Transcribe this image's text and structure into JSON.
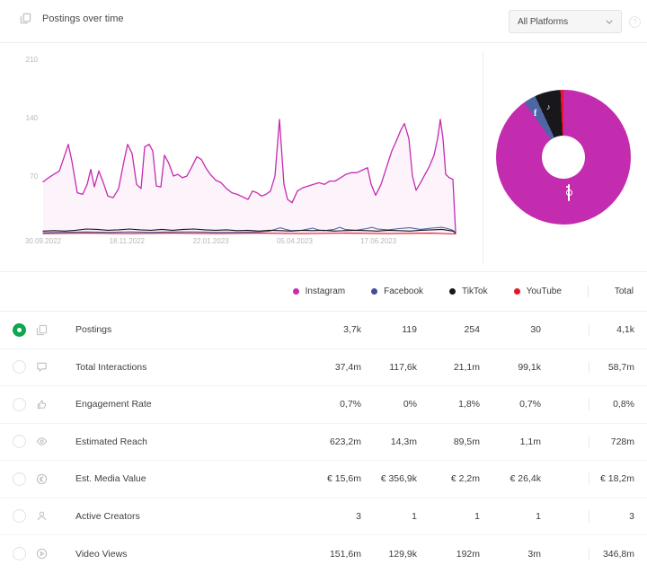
{
  "header": {
    "title": "Postings over time",
    "title_icon": "copy-icon",
    "platform_filter": "All Platforms",
    "help_icon": "help-icon"
  },
  "colors": {
    "instagram": "#c42cb0",
    "facebook": "#4e66a4",
    "facebook_dot": "#3f4e96",
    "tiktok": "#17171c",
    "youtube": "#e9132b",
    "selected_radio": "#0ca750",
    "instagram_fill": "rgba(196,44,176,0.055)",
    "axis_text": "#b8b8b8"
  },
  "chart_data": [
    {
      "type": "line",
      "title": "Postings over time",
      "grid": false,
      "y_ticks": [
        210,
        140,
        70
      ],
      "ylim": [
        0,
        235
      ],
      "x_ticks": [
        "30.09.2022",
        "18.11.2022",
        "22.01.2023",
        "05.04.2023",
        "17.06.2023"
      ],
      "series": [
        {
          "name": "Instagram",
          "color": "#c42cb0",
          "fill": true,
          "points": [
            [
              0,
              63
            ],
            [
              6,
              68
            ],
            [
              12,
              72
            ],
            [
              18,
              76
            ],
            [
              24,
              95
            ],
            [
              28,
              108
            ],
            [
              32,
              88
            ],
            [
              38,
              50
            ],
            [
              44,
              48
            ],
            [
              49,
              60
            ],
            [
              53,
              78
            ],
            [
              57,
              57
            ],
            [
              62,
              76
            ],
            [
              67,
              62
            ],
            [
              72,
              46
            ],
            [
              78,
              44
            ],
            [
              84,
              55
            ],
            [
              90,
              88
            ],
            [
              94,
              108
            ],
            [
              99,
              97
            ],
            [
              104,
              60
            ],
            [
              109,
              55
            ],
            [
              113,
              105
            ],
            [
              118,
              108
            ],
            [
              122,
              100
            ],
            [
              126,
              58
            ],
            [
              131,
              57
            ],
            [
              135,
              95
            ],
            [
              140,
              85
            ],
            [
              145,
              70
            ],
            [
              150,
              72
            ],
            [
              155,
              68
            ],
            [
              160,
              70
            ],
            [
              165,
              80
            ],
            [
              171,
              93
            ],
            [
              176,
              90
            ],
            [
              181,
              80
            ],
            [
              186,
              72
            ],
            [
              192,
              65
            ],
            [
              198,
              62
            ],
            [
              204,
              55
            ],
            [
              210,
              50
            ],
            [
              216,
              48
            ],
            [
              222,
              45
            ],
            [
              228,
              42
            ],
            [
              233,
              52
            ],
            [
              238,
              50
            ],
            [
              243,
              46
            ],
            [
              248,
              48
            ],
            [
              253,
              52
            ],
            [
              258,
              70
            ],
            [
              263,
              138
            ],
            [
              268,
              60
            ],
            [
              272,
              42
            ],
            [
              277,
              38
            ],
            [
              283,
              52
            ],
            [
              289,
              56
            ],
            [
              295,
              58
            ],
            [
              301,
              60
            ],
            [
              307,
              62
            ],
            [
              313,
              60
            ],
            [
              319,
              64
            ],
            [
              325,
              64
            ],
            [
              331,
              68
            ],
            [
              337,
              72
            ],
            [
              343,
              74
            ],
            [
              349,
              74
            ],
            [
              355,
              77
            ],
            [
              361,
              80
            ],
            [
              365,
              60
            ],
            [
              370,
              47
            ],
            [
              376,
              60
            ],
            [
              382,
              80
            ],
            [
              388,
              100
            ],
            [
              393,
              112
            ],
            [
              398,
              125
            ],
            [
              402,
              133
            ],
            [
              407,
              115
            ],
            [
              411,
              70
            ],
            [
              415,
              53
            ],
            [
              420,
              62
            ],
            [
              425,
              72
            ],
            [
              430,
              82
            ],
            [
              435,
              95
            ],
            [
              439,
              115
            ],
            [
              442,
              138
            ],
            [
              445,
              115
            ],
            [
              448,
              72
            ],
            [
              452,
              68
            ],
            [
              456,
              66
            ],
            [
              459,
              3
            ]
          ]
        },
        {
          "name": "YouTube",
          "color": "#e9132b",
          "fill": false,
          "points": [
            [
              0,
              1
            ],
            [
              48,
              1.5
            ],
            [
              96,
              1
            ],
            [
              144,
              1.5
            ],
            [
              192,
              1
            ],
            [
              240,
              1.5
            ],
            [
              288,
              1
            ],
            [
              336,
              1.5
            ],
            [
              384,
              1
            ],
            [
              432,
              1.5
            ],
            [
              459,
              0.5
            ]
          ]
        },
        {
          "name": "Facebook",
          "color": "#4e66a4",
          "fill": false,
          "points": [
            [
              0,
              2
            ],
            [
              24,
              2.5
            ],
            [
              48,
              3
            ],
            [
              72,
              2.5
            ],
            [
              96,
              3
            ],
            [
              120,
              2.5
            ],
            [
              144,
              3
            ],
            [
              168,
              3
            ],
            [
              192,
              2.5
            ],
            [
              216,
              2.5
            ],
            [
              240,
              3
            ],
            [
              252,
              4
            ],
            [
              258,
              6
            ],
            [
              264,
              8
            ],
            [
              270,
              6
            ],
            [
              276,
              4.5
            ],
            [
              288,
              5
            ],
            [
              300,
              7.5
            ],
            [
              306,
              5.5
            ],
            [
              312,
              4.5
            ],
            [
              324,
              6
            ],
            [
              330,
              8.5
            ],
            [
              336,
              6
            ],
            [
              348,
              5
            ],
            [
              360,
              7
            ],
            [
              366,
              8.5
            ],
            [
              372,
              6.5
            ],
            [
              384,
              5.5
            ],
            [
              396,
              7
            ],
            [
              408,
              8
            ],
            [
              420,
              6
            ],
            [
              432,
              7.5
            ],
            [
              444,
              8.5
            ],
            [
              450,
              7
            ],
            [
              456,
              5
            ],
            [
              459,
              2
            ]
          ]
        },
        {
          "name": "TikTok",
          "color": "#17171c",
          "fill": false,
          "points": [
            [
              0,
              4
            ],
            [
              12,
              4.5
            ],
            [
              24,
              4
            ],
            [
              36,
              5
            ],
            [
              48,
              6.5
            ],
            [
              60,
              6
            ],
            [
              72,
              5
            ],
            [
              84,
              5.5
            ],
            [
              96,
              6.5
            ],
            [
              108,
              5.5
            ],
            [
              120,
              5
            ],
            [
              132,
              6
            ],
            [
              144,
              5
            ],
            [
              156,
              6
            ],
            [
              168,
              6.5
            ],
            [
              180,
              5.5
            ],
            [
              192,
              5
            ],
            [
              204,
              5.5
            ],
            [
              216,
              4.5
            ],
            [
              228,
              5
            ],
            [
              240,
              4
            ],
            [
              252,
              5
            ],
            [
              264,
              4.5
            ],
            [
              276,
              4
            ],
            [
              288,
              5
            ],
            [
              300,
              4.5
            ],
            [
              312,
              5
            ],
            [
              324,
              4
            ],
            [
              336,
              4.5
            ],
            [
              348,
              5
            ],
            [
              360,
              4.5
            ],
            [
              372,
              4
            ],
            [
              384,
              5
            ],
            [
              396,
              4.5
            ],
            [
              408,
              4
            ],
            [
              420,
              5
            ],
            [
              432,
              5.5
            ],
            [
              444,
              6
            ],
            [
              456,
              4
            ],
            [
              459,
              1.5
            ]
          ]
        }
      ]
    },
    {
      "type": "pie",
      "donut": true,
      "labels": [
        "Instagram",
        "Facebook",
        "TikTok",
        "YouTube"
      ],
      "values": [
        3700,
        119,
        254,
        30
      ],
      "colors": [
        "#c42cb0",
        "#4e66a4",
        "#17171c",
        "#e9132b"
      ],
      "slice_icons": [
        "instagram-icon",
        "facebook-icon",
        "tiktok-icon",
        null
      ]
    }
  ],
  "legend": {
    "items": [
      {
        "label": "Instagram",
        "color": "#c42cb0"
      },
      {
        "label": "Facebook",
        "color": "#3f4e96"
      },
      {
        "label": "TikTok",
        "color": "#17171c"
      },
      {
        "label": "YouTube",
        "color": "#e9132b"
      }
    ],
    "total_label": "Total"
  },
  "table": {
    "columns": [
      "Instagram",
      "Facebook",
      "TikTok",
      "YouTube",
      "Total"
    ],
    "rows": [
      {
        "icon": "postings-icon",
        "label": "Postings",
        "selected": true,
        "values": [
          "3,7k",
          "119",
          "254",
          "30",
          "4,1k"
        ]
      },
      {
        "icon": "interactions-icon",
        "label": "Total Interactions",
        "selected": false,
        "values": [
          "37,4m",
          "117,6k",
          "21,1m",
          "99,1k",
          "58,7m"
        ]
      },
      {
        "icon": "engagement-icon",
        "label": "Engagement Rate",
        "selected": false,
        "values": [
          "0,7%",
          "0%",
          "1,8%",
          "0,7%",
          "0,8%"
        ]
      },
      {
        "icon": "reach-icon",
        "label": "Estimated Reach",
        "selected": false,
        "values": [
          "623,2m",
          "14,3m",
          "89,5m",
          "1,1m",
          "728m"
        ]
      },
      {
        "icon": "media-value-icon",
        "label": "Est. Media Value",
        "selected": false,
        "values": [
          "€ 15,6m",
          "€ 356,9k",
          "€ 2,2m",
          "€ 26,4k",
          "€ 18,2m"
        ]
      },
      {
        "icon": "creators-icon",
        "label": "Active Creators",
        "selected": false,
        "values": [
          "3",
          "1",
          "1",
          "1",
          "3"
        ]
      },
      {
        "icon": "video-views-icon",
        "label": "Video Views",
        "selected": false,
        "values": [
          "151,6m",
          "129,9k",
          "192m",
          "3m",
          "346,8m"
        ]
      }
    ]
  }
}
